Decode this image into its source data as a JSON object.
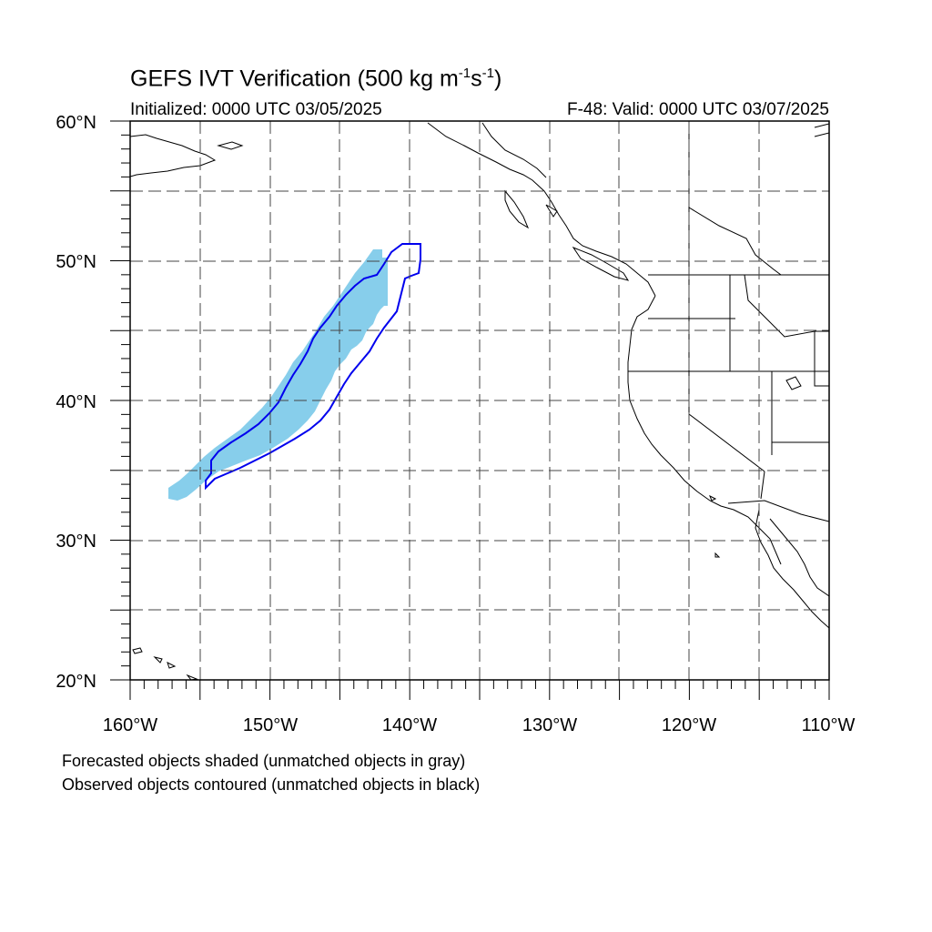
{
  "title": {
    "text": "GEFS IVT Verification (500 kg m",
    "sup1": "-1",
    "mid": "s",
    "sup2": "-1",
    "end": ")"
  },
  "initialized": "Initialized: 0000 UTC 03/05/2025",
  "valid": "F-48: Valid: 0000 UTC 03/07/2025",
  "lat_labels": [
    "60°N",
    "50°N",
    "40°N",
    "30°N",
    "20°N"
  ],
  "lon_labels": [
    "160°W",
    "150°W",
    "140°W",
    "130°W",
    "120°W",
    "110°W"
  ],
  "caption_line1": "Forecasted objects shaded (unmatched objects in gray)",
  "caption_line2": "Observed objects contoured (unmatched objects in black)",
  "colors": {
    "forecast_fill": "#87ceeb",
    "observed_contour": "#0000ee",
    "coast": "#000000",
    "grid": "#000000"
  },
  "map_extent": {
    "lon_min": -160,
    "lon_max": -110,
    "lat_min": 20,
    "lat_max": 60
  }
}
